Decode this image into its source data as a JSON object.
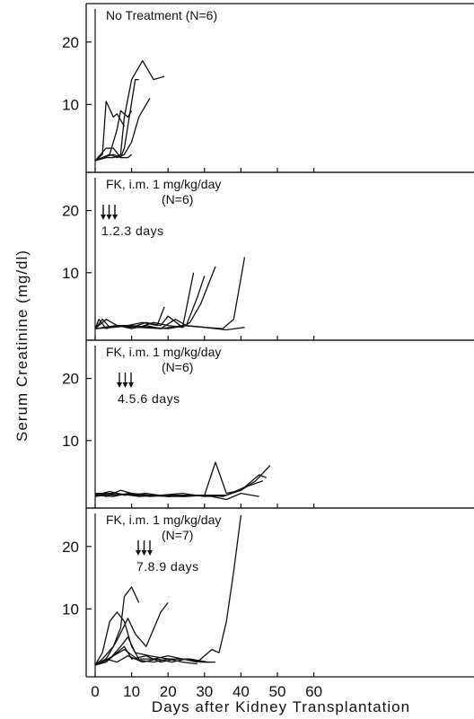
{
  "chart_data": [
    {
      "type": "line",
      "title": "No Treatment",
      "n_label": "(N=6)",
      "xlim": [
        0,
        62
      ],
      "ylim": [
        0,
        25
      ],
      "yticks": [
        10,
        20
      ],
      "series": [
        {
          "x": [
            0,
            2,
            3,
            5,
            6,
            8
          ],
          "y": [
            1,
            2,
            10.5,
            8,
            8.5,
            6.5
          ]
        },
        {
          "x": [
            0,
            3,
            5,
            7,
            8,
            11,
            12
          ],
          "y": [
            1,
            3,
            3,
            1.5,
            3,
            14,
            14
          ]
        },
        {
          "x": [
            0,
            4,
            6,
            8,
            10,
            12,
            15
          ],
          "y": [
            1,
            2,
            1.5,
            2,
            4,
            8,
            11
          ]
        },
        {
          "x": [
            0,
            3,
            5,
            7,
            8,
            10,
            13,
            16,
            19
          ],
          "y": [
            1,
            1.5,
            1.5,
            2,
            8,
            14,
            17,
            14,
            14.5
          ]
        },
        {
          "x": [
            0,
            2,
            4,
            6,
            7,
            9,
            10
          ],
          "y": [
            1,
            1.5,
            2,
            6,
            9,
            8,
            9
          ]
        },
        {
          "x": [
            0,
            2,
            5,
            7,
            9,
            10
          ],
          "y": [
            1,
            1.5,
            2,
            1.5,
            1.5,
            2
          ]
        }
      ]
    },
    {
      "type": "line",
      "title": "FK, i.m. 1 mg/kg/day",
      "n_label": "(N=6)",
      "days_label": "1.2.3 days",
      "arrows_at_days": [
        1,
        2,
        3
      ],
      "xlim": [
        0,
        62
      ],
      "ylim": [
        0,
        25
      ],
      "yticks": [
        10,
        20
      ],
      "series": [
        {
          "x": [
            0,
            2,
            4,
            6,
            10,
            14,
            18,
            20,
            24,
            27
          ],
          "y": [
            1,
            2.5,
            1.2,
            1.5,
            1.2,
            2,
            1.5,
            3,
            1.2,
            10
          ]
        },
        {
          "x": [
            0,
            1,
            3,
            6,
            9,
            13,
            17,
            19
          ],
          "y": [
            1,
            2.5,
            1,
            1.5,
            1.5,
            2,
            1.5,
            4.5
          ]
        },
        {
          "x": [
            0,
            3,
            6,
            10,
            14,
            18,
            22,
            25,
            28,
            30
          ],
          "y": [
            1,
            2.5,
            1.5,
            1,
            1.5,
            1,
            2.5,
            1.5,
            6,
            9.5
          ]
        },
        {
          "x": [
            0,
            4,
            8,
            12,
            16,
            20,
            24,
            26,
            29,
            33
          ],
          "y": [
            1,
            1.2,
            1.5,
            1.2,
            2,
            1.5,
            1.2,
            2,
            5,
            11
          ]
        },
        {
          "x": [
            0,
            5,
            10,
            15,
            20,
            25,
            30,
            35,
            38,
            41
          ],
          "y": [
            1,
            1.2,
            1.5,
            1.2,
            1,
            1.5,
            1.2,
            1,
            2.5,
            12.5
          ]
        },
        {
          "x": [
            0,
            6,
            12,
            18,
            24,
            30,
            36,
            41
          ],
          "y": [
            1,
            1.5,
            1.2,
            1,
            1.5,
            1.2,
            0.8,
            1.2
          ]
        }
      ]
    },
    {
      "type": "line",
      "title": "FK, i.m. 1 mg/kg/day",
      "n_label": "(N=6)",
      "days_label": "4.5.6 days",
      "arrows_at_days": [
        4,
        5,
        6
      ],
      "xlim": [
        0,
        62
      ],
      "ylim": [
        0,
        25
      ],
      "yticks": [
        10,
        20
      ],
      "series": [
        {
          "x": [
            0,
            5,
            10,
            15,
            20,
            25,
            30,
            33,
            36,
            40,
            44,
            48
          ],
          "y": [
            1.5,
            1.5,
            1.2,
            1.2,
            1,
            1,
            1.2,
            6.5,
            1.5,
            2,
            3.5,
            6
          ]
        },
        {
          "x": [
            0,
            5,
            10,
            15,
            20,
            25,
            30,
            35,
            40,
            45,
            47
          ],
          "y": [
            1.5,
            1.2,
            1.5,
            1.2,
            1,
            1.2,
            1.2,
            1,
            2,
            4.5,
            4
          ]
        },
        {
          "x": [
            0,
            4,
            8,
            14,
            20,
            26,
            32,
            36,
            40,
            45
          ],
          "y": [
            1.2,
            1.8,
            1.2,
            1.5,
            1,
            1.2,
            1,
            0.5,
            1.5,
            1
          ]
        },
        {
          "x": [
            0,
            3,
            7,
            12,
            18,
            24,
            30,
            36,
            41,
            46
          ],
          "y": [
            1.5,
            1,
            2,
            1.2,
            1.2,
            1,
            1.2,
            1.2,
            2.5,
            3.5
          ]
        },
        {
          "x": [
            0,
            6,
            12,
            18,
            24,
            30,
            35
          ],
          "y": [
            1,
            1.5,
            1,
            1.2,
            1.5,
            1,
            1.2
          ]
        },
        {
          "x": [
            0,
            5,
            9,
            15,
            21,
            27,
            33
          ],
          "y": [
            1.2,
            1,
            1.5,
            1,
            1.2,
            1.2,
            1
          ]
        }
      ]
    },
    {
      "type": "line",
      "title": "FK, i.m. 1 mg/kg/day",
      "n_label": "(N=7)",
      "days_label": "7.8.9 days",
      "arrows_at_days": [
        7,
        8,
        9
      ],
      "xlim": [
        0,
        62
      ],
      "ylim": [
        0,
        25
      ],
      "yticks": [
        10,
        20
      ],
      "series": [
        {
          "x": [
            0,
            2,
            4,
            6,
            8,
            10,
            12,
            16,
            20,
            24,
            28,
            32,
            34,
            36,
            38,
            40
          ],
          "y": [
            1,
            3,
            8,
            9.5,
            8,
            4,
            2,
            2,
            2.5,
            2,
            1.5,
            3.5,
            3,
            8,
            16,
            25
          ]
        },
        {
          "x": [
            0,
            2,
            5,
            7,
            8,
            10,
            12
          ],
          "y": [
            1,
            2,
            4,
            7,
            12,
            13.5,
            11
          ]
        },
        {
          "x": [
            0,
            3,
            6,
            9,
            11,
            14,
            18,
            20
          ],
          "y": [
            1,
            2,
            5,
            8.5,
            6,
            4,
            9.5,
            11
          ]
        },
        {
          "x": [
            0,
            4,
            7,
            9,
            11,
            15,
            20,
            25,
            30,
            32
          ],
          "y": [
            1,
            2,
            4,
            5.5,
            3,
            2.5,
            2,
            2,
            1.5,
            1.5
          ]
        },
        {
          "x": [
            0,
            3,
            6,
            8,
            10,
            14,
            18,
            22,
            26,
            31
          ],
          "y": [
            1,
            1.5,
            3,
            4,
            2,
            2.5,
            1.5,
            2,
            2,
            1.5
          ]
        },
        {
          "x": [
            0,
            2,
            5,
            8,
            12,
            16,
            20,
            24,
            28
          ],
          "y": [
            1,
            1.5,
            2.5,
            3.5,
            1.8,
            1.5,
            2,
            1.5,
            1.2
          ]
        },
        {
          "x": [
            0,
            3,
            6,
            9,
            13,
            17,
            21,
            25,
            29,
            33
          ],
          "y": [
            1,
            2,
            1.5,
            2.5,
            1.5,
            2,
            1.5,
            2,
            1.5,
            1.5
          ]
        }
      ]
    }
  ],
  "shared": {
    "x_ticks": [
      "0",
      "10",
      "20",
      "30",
      "40",
      "50",
      "60"
    ],
    "x_tick_values": [
      0,
      10,
      20,
      30,
      40,
      50,
      60
    ],
    "xlabel": "Days after Kidney Transplantation",
    "ylabel": "Serum Creatinine (mg/dl)",
    "y_ticks": [
      "10",
      "20"
    ]
  }
}
